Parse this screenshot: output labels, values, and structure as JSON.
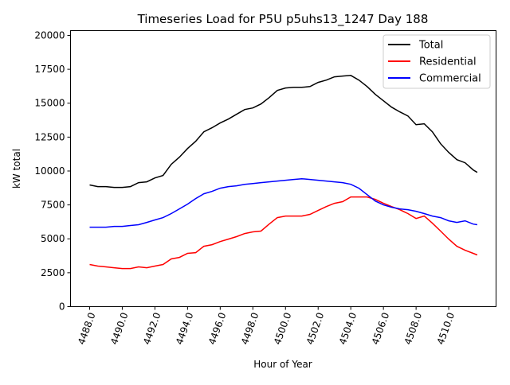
{
  "chart_data": {
    "type": "line",
    "title": "Timeseries Load for P5U p5uhs13_1247  Day 188",
    "xlabel": "Hour of Year",
    "ylabel": "kW total",
    "xlim": [
      4486.83,
      4512.9
    ],
    "ylim": [
      0,
      20350
    ],
    "grid": false,
    "legend_position": "top-right",
    "x_ticks": [
      4488,
      4490,
      4492,
      4494,
      4496,
      4498,
      4500,
      4502,
      4504,
      4506,
      4508,
      4510
    ],
    "x_tick_labels": [
      "4488.0",
      "4490.0",
      "4492.0",
      "4494.0",
      "4496.0",
      "4498.0",
      "4500.0",
      "4502.0",
      "4504.0",
      "4506.0",
      "4508.0",
      "4510.0"
    ],
    "y_ticks": [
      0,
      2500,
      5000,
      7500,
      10000,
      12500,
      15000,
      17500,
      20000
    ],
    "y_tick_labels": [
      "0",
      "2500",
      "5000",
      "7500",
      "10000",
      "12500",
      "15000",
      "17500",
      "20000"
    ],
    "x": [
      4488,
      4488.5,
      4489,
      4489.5,
      4490,
      4490.5,
      4491,
      4491.5,
      4492,
      4492.5,
      4493,
      4493.5,
      4494,
      4494.5,
      4495,
      4495.5,
      4496,
      4496.5,
      4497,
      4497.5,
      4498,
      4498.5,
      4499,
      4499.5,
      4500,
      4500.5,
      4501,
      4501.5,
      4502,
      4502.5,
      4503,
      4503.5,
      4504,
      4504.5,
      4505,
      4505.5,
      4506,
      4506.5,
      4507,
      4507.5,
      4508,
      4508.5,
      4509,
      4509.5,
      4510,
      4510.5,
      4511,
      4511.5,
      4511.75
    ],
    "series": [
      {
        "name": "Total",
        "color": "#000000",
        "values": [
          8970,
          8850,
          8850,
          8790,
          8790,
          8850,
          9140,
          9200,
          9490,
          9670,
          10490,
          11020,
          11660,
          12190,
          12890,
          13190,
          13540,
          13830,
          14180,
          14530,
          14650,
          14940,
          15410,
          15940,
          16120,
          16170,
          16170,
          16230,
          16530,
          16700,
          16940,
          17000,
          17050,
          16700,
          16230,
          15650,
          15180,
          14710,
          14360,
          14060,
          13420,
          13480,
          12890,
          12010,
          11370,
          10840,
          10610,
          10080,
          9900
        ]
      },
      {
        "name": "Residential",
        "color": "#ff0000",
        "values": [
          3110,
          2990,
          2930,
          2870,
          2810,
          2810,
          2930,
          2870,
          2990,
          3110,
          3520,
          3630,
          3930,
          3980,
          4450,
          4570,
          4800,
          4980,
          5160,
          5390,
          5510,
          5570,
          6090,
          6560,
          6680,
          6680,
          6680,
          6800,
          7090,
          7380,
          7620,
          7740,
          8090,
          8090,
          8090,
          7910,
          7620,
          7380,
          7150,
          6860,
          6500,
          6680,
          6150,
          5570,
          4980,
          4450,
          4160,
          3930,
          3810
        ]
      },
      {
        "name": "Commercial",
        "color": "#0000ff",
        "values": [
          5860,
          5860,
          5860,
          5920,
          5920,
          5980,
          6040,
          6210,
          6390,
          6560,
          6860,
          7210,
          7560,
          7970,
          8320,
          8500,
          8730,
          8850,
          8910,
          9020,
          9080,
          9140,
          9200,
          9260,
          9320,
          9380,
          9430,
          9380,
          9320,
          9260,
          9200,
          9140,
          9020,
          8730,
          8260,
          7790,
          7500,
          7330,
          7210,
          7150,
          7030,
          6860,
          6680,
          6560,
          6330,
          6210,
          6330,
          6090,
          6040
        ]
      }
    ]
  }
}
